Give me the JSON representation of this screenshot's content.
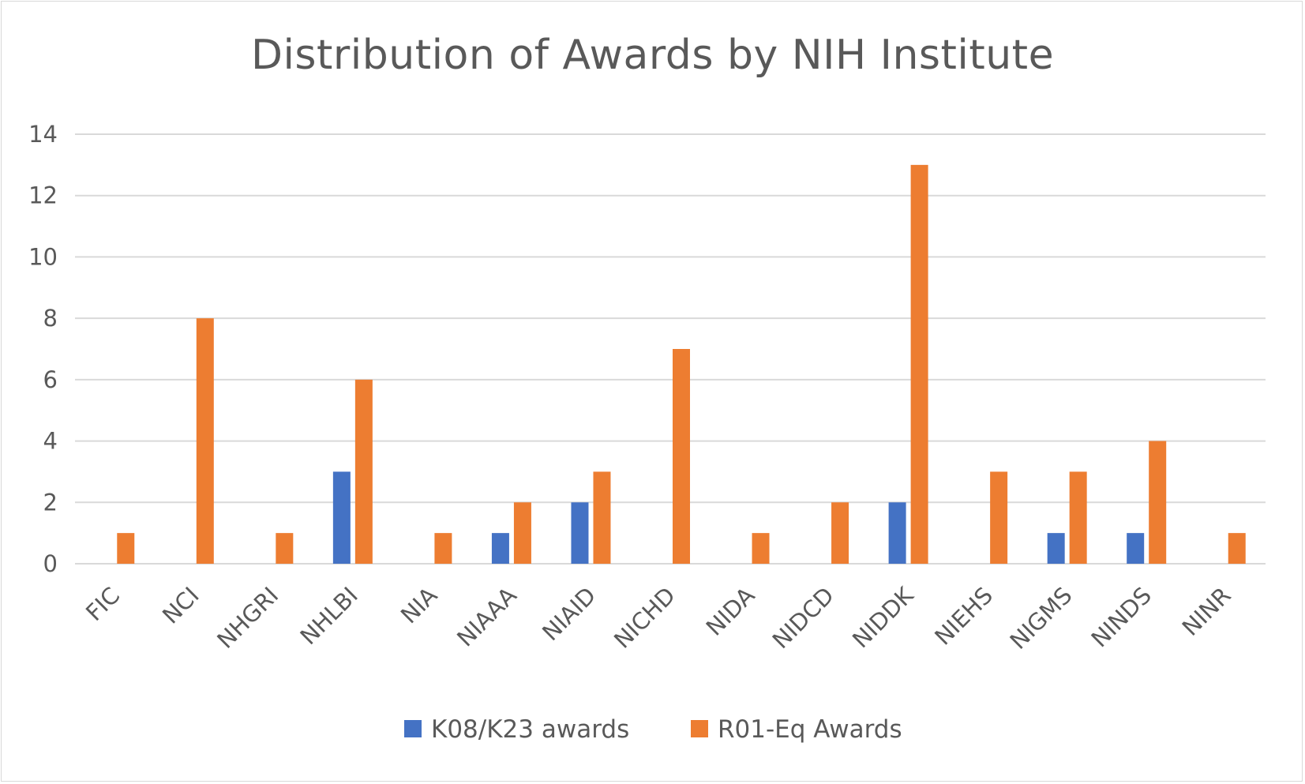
{
  "chart_data": {
    "type": "bar",
    "title": "Distribution of Awards by NIH Institute",
    "xlabel": "",
    "ylabel": "",
    "ylim": [
      0,
      14
    ],
    "yticks": [
      0,
      2,
      4,
      6,
      8,
      10,
      12,
      14
    ],
    "grid": true,
    "legend_position": "bottom",
    "categories": [
      "FIC",
      "NCI",
      "NHGRI",
      "NHLBI",
      "NIA",
      "NIAAA",
      "NIAID",
      "NICHD",
      "NIDA",
      "NIDCD",
      "NIDDK",
      "NIEHS",
      "NIGMS",
      "NINDS",
      "NINR"
    ],
    "series": [
      {
        "name": "K08/K23 awards",
        "color": "#4472c4",
        "values": [
          0,
          0,
          0,
          3,
          0,
          1,
          2,
          0,
          0,
          0,
          2,
          0,
          1,
          1,
          0
        ]
      },
      {
        "name": "R01-Eq Awards",
        "color": "#ed7d31",
        "values": [
          1,
          8,
          1,
          6,
          1,
          2,
          3,
          7,
          1,
          2,
          13,
          3,
          3,
          4,
          1
        ]
      }
    ]
  }
}
